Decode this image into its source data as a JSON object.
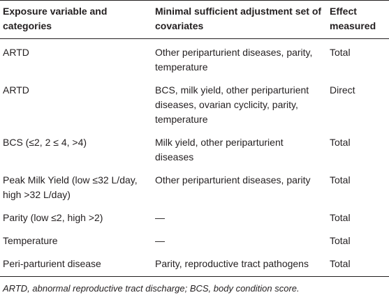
{
  "table": {
    "headers": [
      "Exposure variable and categories",
      "Minimal sufficient adjustment set of covariates",
      "Effect measured"
    ],
    "rows": [
      [
        "ARTD",
        "Other periparturient diseases, parity, temperature",
        "Total"
      ],
      [
        "ARTD",
        "BCS, milk yield, other periparturient diseases, ovarian cyclicity, parity, temperature",
        "Direct"
      ],
      [
        "BCS (≤2, 2 ≤ 4, >4)",
        "Milk yield, other periparturient diseases",
        "Total"
      ],
      [
        "Peak Milk Yield (low ≤32 L/day, high >32 L/day)",
        "Other periparturient diseases, parity",
        "Total"
      ],
      [
        "Parity (low ≤2, high >2)",
        "—",
        "Total"
      ],
      [
        "Temperature",
        "—",
        "Total"
      ],
      [
        "Peri-parturient disease",
        "Parity, reproductive tract pathogens",
        "Total"
      ]
    ]
  },
  "footnote": "ARTD, abnormal reproductive tract discharge; BCS, body condition score."
}
